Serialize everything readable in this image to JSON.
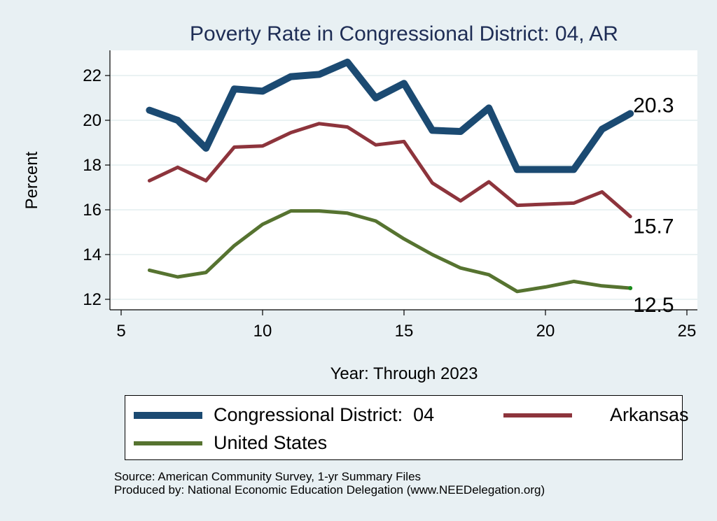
{
  "chart_data": {
    "type": "line",
    "title": "Poverty Rate in Congressional District:  04, AR",
    "xlabel": "Year: Through 2023",
    "ylabel": "Percent",
    "xlim": [
      4.6,
      25.4
    ],
    "ylim": [
      11.5,
      23.1
    ],
    "xticks": [
      5,
      10,
      15,
      20,
      25
    ],
    "yticks": [
      12,
      14,
      16,
      18,
      20,
      22
    ],
    "grid": true,
    "legend_position": "bottom",
    "x": [
      6,
      7,
      8,
      9,
      10,
      11,
      12,
      13,
      14,
      15,
      16,
      17,
      18,
      19,
      20,
      21,
      22,
      23
    ],
    "series": [
      {
        "name": "Congressional District:  04",
        "color": "#1b4a72",
        "values": [
          20.45,
          20.0,
          18.75,
          21.4,
          21.3,
          21.95,
          22.05,
          22.6,
          21.0,
          21.65,
          19.55,
          19.5,
          20.55,
          17.8,
          17.8,
          17.8,
          19.6,
          20.3
        ],
        "end_label": "20.3"
      },
      {
        "name": "Arkansas",
        "color": "#8d343c",
        "values": [
          17.3,
          17.9,
          17.3,
          18.8,
          18.85,
          19.45,
          19.85,
          19.7,
          18.9,
          19.05,
          17.2,
          16.4,
          17.25,
          16.2,
          16.25,
          16.3,
          16.8,
          15.7
        ],
        "end_label": "15.7"
      },
      {
        "name": "United States",
        "color": "#567330",
        "values": [
          13.3,
          13.0,
          13.2,
          14.4,
          15.35,
          15.95,
          15.95,
          15.85,
          15.5,
          14.7,
          14.0,
          13.4,
          13.1,
          12.35,
          12.55,
          12.8,
          12.6,
          12.5
        ],
        "end_label": "12.5"
      }
    ]
  },
  "notes": {
    "source": "Source: American Community Survey, 1-yr Summary Files",
    "produced_by": "Produced by: National Economic Education Delegation (www.NEEDelegation.org)"
  }
}
